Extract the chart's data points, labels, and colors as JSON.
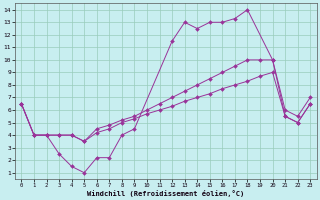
{
  "xlabel": "Windchill (Refroidissement éolien,°C)",
  "bg_color": "#c8eef0",
  "grid_color": "#99ccbb",
  "line_color": "#993399",
  "xlim": [
    -0.5,
    23.5
  ],
  "ylim": [
    0.5,
    14.5
  ],
  "xticks": [
    0,
    1,
    2,
    3,
    4,
    5,
    6,
    7,
    8,
    9,
    10,
    11,
    12,
    13,
    14,
    15,
    16,
    17,
    18,
    19,
    20,
    21,
    22,
    23
  ],
  "yticks": [
    1,
    2,
    3,
    4,
    5,
    6,
    7,
    8,
    9,
    10,
    11,
    12,
    13,
    14
  ],
  "line1_x": [
    0,
    1,
    2,
    3,
    4,
    5,
    6,
    7,
    8,
    9,
    12,
    13,
    14,
    15,
    16,
    17,
    18,
    20,
    21,
    22,
    23
  ],
  "line1_y": [
    6.5,
    4,
    4,
    2.5,
    1.5,
    1.0,
    2.2,
    2.2,
    4,
    4.5,
    11.5,
    13,
    12.5,
    13,
    13,
    13.3,
    14,
    10,
    5.5,
    5,
    6.5
  ],
  "line2_x": [
    0,
    1,
    2,
    3,
    4,
    5,
    6,
    7,
    8,
    9,
    10,
    11,
    12,
    13,
    14,
    15,
    16,
    17,
    18,
    19,
    20,
    21,
    22,
    23
  ],
  "line2_y": [
    6.5,
    4.0,
    4.0,
    4.0,
    4.0,
    3.5,
    4.2,
    4.5,
    5.0,
    5.3,
    5.7,
    6.0,
    6.3,
    6.7,
    7.0,
    7.3,
    7.7,
    8.0,
    8.3,
    8.7,
    9.0,
    5.5,
    5.0,
    6.5
  ],
  "line3_x": [
    0,
    1,
    2,
    3,
    4,
    5,
    6,
    7,
    8,
    9,
    10,
    11,
    12,
    13,
    14,
    15,
    16,
    17,
    18,
    19,
    20,
    21,
    22,
    23
  ],
  "line3_y": [
    6.5,
    4.0,
    4.0,
    4.0,
    4.0,
    3.5,
    4.5,
    4.8,
    5.2,
    5.5,
    6.0,
    6.5,
    7.0,
    7.5,
    8.0,
    8.5,
    9.0,
    9.5,
    10.0,
    10.0,
    10.0,
    6.0,
    5.5,
    7.0
  ]
}
